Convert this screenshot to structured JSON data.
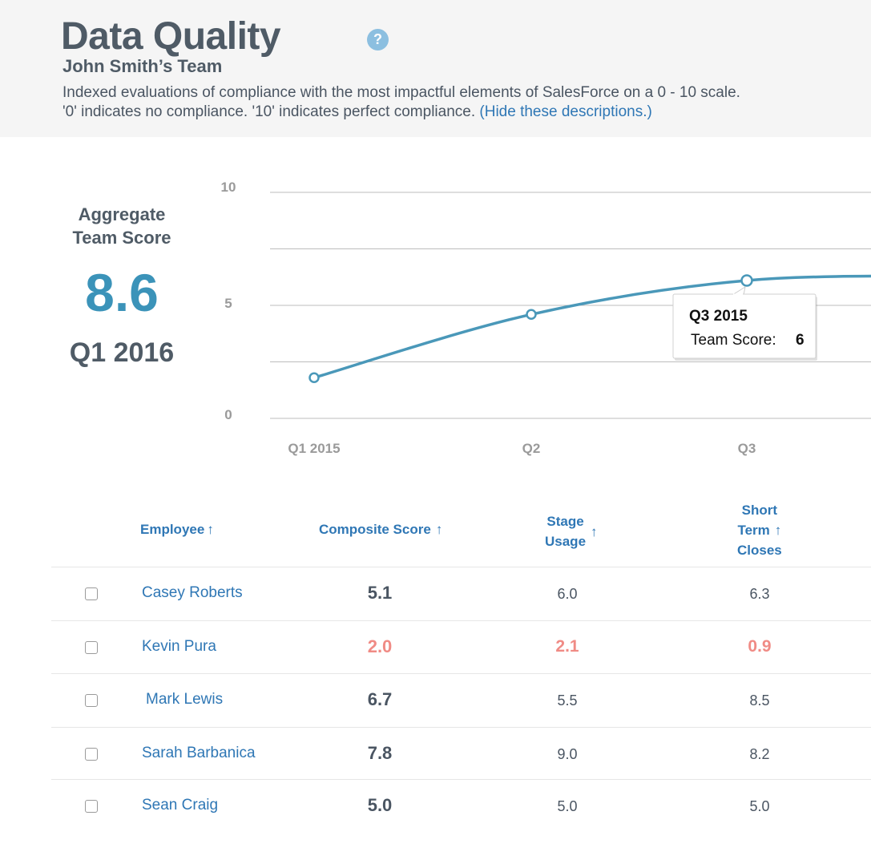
{
  "header": {
    "title": "Data Quality",
    "help_icon": "question-circle-icon",
    "help_glyph": "?",
    "team": "John Smith’s Team",
    "description_line1": "Indexed evaluations of compliance with the most impactful elements of SalesForce on a 0 - 10 scale.",
    "description_line2": "'0' indicates no compliance. '10' indicates perfect compliance.",
    "hide_link": "(Hide these descriptions.)"
  },
  "aggregate": {
    "label_line1": "Aggregate",
    "label_line2": "Team Score",
    "score": "8.6",
    "period": "Q1 2016"
  },
  "chart_data": {
    "type": "line",
    "categories": [
      "Q1 2015",
      "Q2",
      "Q3",
      "Q4"
    ],
    "series": [
      {
        "values": [
          1.8,
          4.6,
          6.1,
          6.3
        ]
      }
    ],
    "ylim": [
      0,
      10
    ],
    "y_ticks": [
      "10",
      "5",
      "0"
    ],
    "x_tick_labels": [
      "Q1 2015",
      "Q2",
      "Q3"
    ],
    "grid": true,
    "line_color": "#4a98b9",
    "tooltip": {
      "title": "Q3 2015",
      "label": "Team Score:",
      "value": "6"
    }
  },
  "table": {
    "headers": {
      "employee": "Employee",
      "composite": "Composite Score",
      "stage_line1": "Stage",
      "stage_line2": "Usage",
      "short_line1": "Short",
      "short_line2": "Term",
      "short_line3": "Closes",
      "sort_glyph": "↑"
    },
    "rows": [
      {
        "name": "Casey Roberts",
        "composite": "5.1",
        "stage": "6.0",
        "short": "6.3",
        "low": false
      },
      {
        "name": "Kevin Pura",
        "composite": "2.0",
        "stage": "2.1",
        "short": "0.9",
        "low": true
      },
      {
        "name": "Mark Lewis",
        "composite": "6.7",
        "stage": "5.5",
        "short": "8.5",
        "low": false
      },
      {
        "name": "Sarah Barbanica",
        "composite": "7.8",
        "stage": "9.0",
        "short": "8.2",
        "low": false
      },
      {
        "name": "Sean Craig",
        "composite": "5.0",
        "stage": "5.0",
        "short": "5.0",
        "low": false
      }
    ]
  },
  "colors": {
    "accent": "#2f77b5",
    "score": "#3b93b9",
    "warning": "#f08b85"
  }
}
